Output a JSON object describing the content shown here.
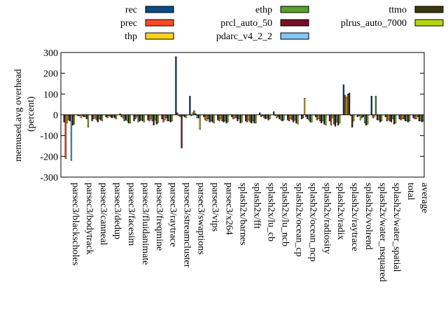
{
  "chart_data": {
    "type": "bar",
    "xlabel": "",
    "ylabel": "memused.avg overhead",
    "ylabel2": "(percent)",
    "ylim": [
      -300,
      300
    ],
    "yticks": [
      300,
      200,
      100,
      0,
      -100,
      -200,
      -300
    ],
    "legend_placement": "top",
    "categories": [
      "parsec3/blackscholes",
      "parsec3/bodytrack",
      "parsec3/canneal",
      "parsec3/dedup",
      "parsec3/facesim",
      "parsec3/fluidanimate",
      "parsec3/freqmine",
      "parsec3/raytrace",
      "parsec3/streamcluster",
      "parsec3/swaptions",
      "parsec3/vips",
      "parsec3/x264",
      "splash2x/barnes",
      "splash2x/fft",
      "splash2x/lu_cb",
      "splash2x/lu_ncb",
      "splash2x/ocean_cp",
      "splash2x/ocean_ncp",
      "splash2x/radiosity",
      "splash2x/radix",
      "splash2x/raytrace",
      "splash2x/volrend",
      "splash2x/water_nsquared",
      "splash2x/water_spatial",
      "total",
      "average"
    ],
    "series": [
      {
        "name": "rec",
        "color": "#0d4a87",
        "values": [
          -35,
          -5,
          -30,
          -10,
          5,
          -30,
          -25,
          -20,
          280,
          90,
          -10,
          -25,
          -10,
          -30,
          10,
          15,
          -25,
          -20,
          -10,
          -30,
          145,
          -10,
          90,
          -10,
          -20,
          -15
        ]
      },
      {
        "name": "prec",
        "color": "#ff4c1f",
        "values": [
          -210,
          -5,
          -20,
          -15,
          -10,
          -20,
          -30,
          -35,
          10,
          -5,
          -25,
          -30,
          -20,
          -35,
          -10,
          -5,
          -30,
          -15,
          -25,
          -50,
          95,
          -5,
          -15,
          -30,
          -25,
          -20
        ]
      },
      {
        "name": "thp",
        "color": "#ffd21a",
        "values": [
          -40,
          -15,
          -15,
          -5,
          -15,
          -10,
          -20,
          -25,
          -5,
          10,
          -30,
          -20,
          -15,
          -25,
          -5,
          -15,
          -20,
          80,
          -20,
          -15,
          85,
          -25,
          -10,
          -25,
          -20,
          -20
        ]
      },
      {
        "name": "ethp",
        "color": "#5aa12b",
        "values": [
          -25,
          -5,
          -25,
          -10,
          -30,
          -35,
          -30,
          -15,
          -10,
          20,
          -20,
          -30,
          -15,
          -35,
          -15,
          -10,
          -25,
          -10,
          -30,
          -45,
          100,
          -15,
          90,
          -30,
          -20,
          -10
        ]
      },
      {
        "name": "prcl_auto_50",
        "color": "#7a0d25",
        "values": [
          -30,
          -10,
          -35,
          -15,
          -25,
          -30,
          -50,
          -30,
          -160,
          5,
          -35,
          -35,
          -30,
          -40,
          -20,
          -20,
          -35,
          -20,
          -40,
          -55,
          105,
          -10,
          -25,
          -35,
          -30,
          -30
        ]
      },
      {
        "name": "pdarc_v4_2_2",
        "color": "#80c8f5",
        "values": [
          -220,
          -10,
          -20,
          -10,
          -30,
          -25,
          -25,
          -30,
          -5,
          -15,
          -30,
          -30,
          -20,
          -30,
          -15,
          -25,
          -25,
          -25,
          -30,
          -35,
          -5,
          -40,
          -25,
          -20,
          -30,
          -30
        ]
      },
      {
        "name": "ttmo",
        "color": "#3a3a0e",
        "values": [
          -50,
          -20,
          -25,
          -15,
          -40,
          -30,
          -45,
          -35,
          -10,
          -15,
          -35,
          -40,
          -40,
          -40,
          -25,
          -30,
          -40,
          -35,
          -45,
          -50,
          -60,
          -50,
          -35,
          -45,
          -35,
          -35
        ]
      },
      {
        "name": "plrus_auto_7000",
        "color": "#b5d60e",
        "values": [
          -45,
          -60,
          -30,
          -20,
          -40,
          -35,
          -40,
          -30,
          -15,
          -70,
          -40,
          -35,
          -35,
          -40,
          -20,
          -25,
          -45,
          -35,
          -50,
          -40,
          -30,
          -45,
          -30,
          -40,
          -30,
          -30
        ]
      }
    ]
  }
}
